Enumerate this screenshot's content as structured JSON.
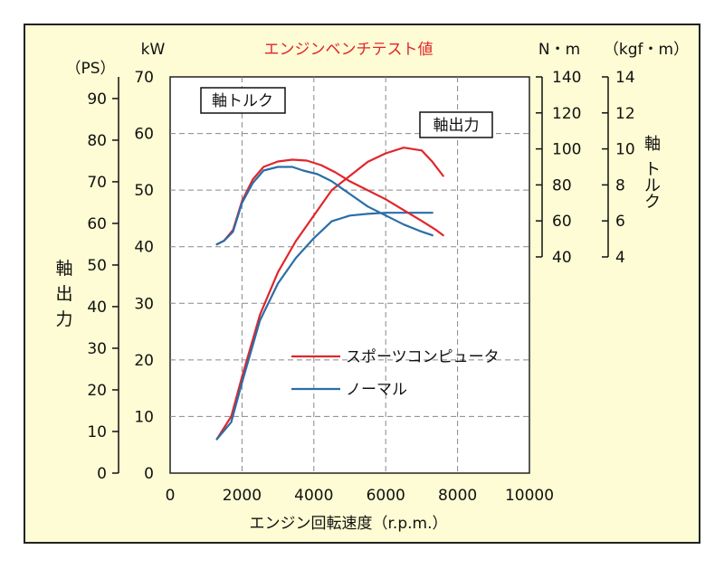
{
  "chart_data": {
    "type": "line",
    "title": "エンジンベンチテスト値",
    "xlabel": "エンジン回転速度（r.p.m.）",
    "xlim": [
      0,
      10000
    ],
    "x_ticks": [
      "0",
      "2000",
      "4000",
      "6000",
      "8000",
      "10000"
    ],
    "grid": true,
    "background_color": "#fdfcd4",
    "frame_color": "#222222",
    "axes": {
      "kw": {
        "unit": "kW",
        "lim": [
          0,
          70
        ],
        "ticks": [
          "0",
          "10",
          "20",
          "30",
          "40",
          "50",
          "60",
          "70"
        ]
      },
      "ps": {
        "unit": "（PS）",
        "lim": [
          0,
          95.2
        ],
        "ticks": [
          "0",
          "10",
          "20",
          "30",
          "40",
          "50",
          "60",
          "70",
          "80",
          "90"
        ],
        "label": "軸出力"
      },
      "nm": {
        "unit": "N・m",
        "lim": [
          40,
          140
        ],
        "ticks": [
          "40",
          "60",
          "80",
          "100",
          "120",
          "140"
        ]
      },
      "kgf": {
        "unit": "（kgf・m）",
        "lim": [
          4,
          14
        ],
        "ticks": [
          "4",
          "6",
          "8",
          "10",
          "12",
          "14"
        ],
        "label": "軸トルク"
      }
    },
    "annotations": [
      {
        "text": "軸トルク"
      },
      {
        "text": "軸出力"
      }
    ],
    "legend": [
      {
        "name": "スポーツコンピュータ",
        "color": "#e0262b"
      },
      {
        "name": "ノーマル",
        "color": "#2a6ea8"
      }
    ],
    "series": [
      {
        "name": "スポーツコンピュータ",
        "kind": "power",
        "axis": "kw",
        "color": "#e0262b",
        "x": [
          1300,
          1700,
          2000,
          2500,
          3000,
          3500,
          4000,
          4500,
          5000,
          5500,
          6000,
          6500,
          7000,
          7300,
          7600
        ],
        "y": [
          6,
          10,
          17,
          28,
          35.5,
          41,
          45.5,
          50,
          52.5,
          55,
          56.5,
          57.5,
          57,
          55,
          52.5
        ]
      },
      {
        "name": "ノーマル",
        "kind": "power",
        "axis": "kw",
        "color": "#2a6ea8",
        "x": [
          1300,
          1700,
          2000,
          2500,
          3000,
          3500,
          4000,
          4500,
          5000,
          5500,
          6000,
          6500,
          7000,
          7300
        ],
        "y": [
          6,
          9,
          16,
          27,
          33.5,
          38,
          41.5,
          44.5,
          45.5,
          45.8,
          46,
          46,
          46,
          46
        ]
      },
      {
        "name": "スポーツコンピュータ",
        "kind": "torque",
        "axis": "nm",
        "color": "#e0262b",
        "x": [
          1300,
          1500,
          1750,
          2000,
          2300,
          2600,
          3000,
          3400,
          3800,
          4200,
          4600,
          5000,
          5500,
          6000,
          6500,
          7000,
          7400,
          7600
        ],
        "y": [
          47,
          49,
          55,
          71,
          83,
          90,
          93,
          94,
          93.5,
          91,
          87,
          82,
          77,
          72,
          66,
          60,
          55,
          52
        ]
      },
      {
        "name": "ノーマル",
        "kind": "torque",
        "axis": "nm",
        "color": "#2a6ea8",
        "x": [
          1300,
          1500,
          1750,
          2000,
          2300,
          2600,
          3000,
          3400,
          3700,
          4100,
          4500,
          5000,
          5500,
          6000,
          6500,
          7000,
          7300
        ],
        "y": [
          47,
          49,
          54,
          70,
          81,
          88,
          90,
          90,
          88,
          86,
          82,
          75,
          68,
          63,
          58,
          54,
          52
        ]
      }
    ]
  }
}
